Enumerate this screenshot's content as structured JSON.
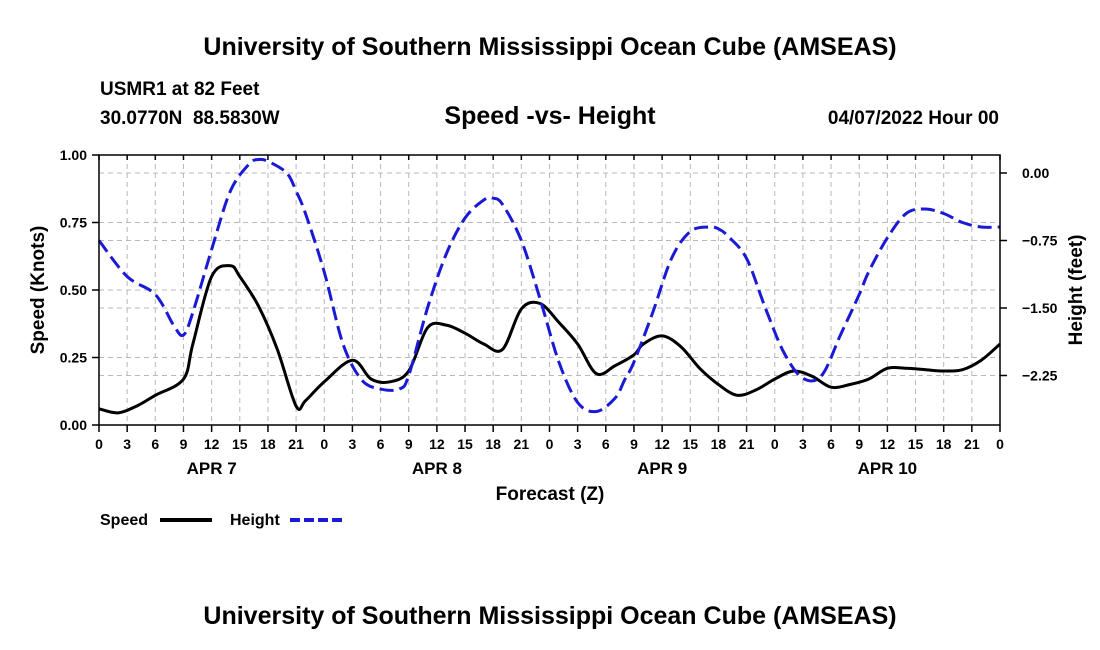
{
  "chart_data": {
    "type": "line",
    "title": "University of Southern Mississippi Ocean Cube (AMSEAS)",
    "footer_title": "University of Southern Mississippi Ocean Cube (AMSEAS)",
    "subtitle": "Speed -vs- Height",
    "station": "USMR1 at 82 Feet",
    "location": "30.0770N  88.5830W",
    "datetime": "04/07/2022 Hour 00",
    "xlabel": "Forecast (Z)",
    "ylabel_left": "Speed (Knots)",
    "ylabel_right": "Height (feet)",
    "x_range": [
      0,
      96
    ],
    "ylim_left": [
      0,
      1
    ],
    "ylim_right": [
      -2.8,
      0.2
    ],
    "left_ticks": [
      "0.00",
      "0.25",
      "0.50",
      "0.75",
      "1.00"
    ],
    "left_tick_values": [
      0,
      0.25,
      0.5,
      0.75,
      1.0
    ],
    "right_ticks": [
      "0.00",
      "−0.75",
      "−1.50",
      "−2.25"
    ],
    "right_tick_values": [
      0,
      -0.75,
      -1.5,
      -2.25
    ],
    "x_tick_labels": [
      "0",
      "3",
      "6",
      "9",
      "12",
      "15",
      "18",
      "21",
      "0",
      "3",
      "6",
      "9",
      "12",
      "15",
      "18",
      "21",
      "0",
      "3",
      "6",
      "9",
      "12",
      "15",
      "18",
      "21",
      "0",
      "3",
      "6",
      "9",
      "12",
      "15",
      "18",
      "21",
      "0"
    ],
    "date_labels": [
      {
        "label": "APR 7",
        "hour": 12
      },
      {
        "label": "APR 8",
        "hour": 36
      },
      {
        "label": "APR 9",
        "hour": 60
      },
      {
        "label": "APR 10",
        "hour": 84
      }
    ],
    "grid": true,
    "series": [
      {
        "name": "Speed",
        "axis": "left",
        "color": "#000000",
        "style": "solid",
        "x": [
          0,
          2,
          4,
          6,
          9,
          10,
          12,
          14,
          15,
          17,
          19,
          21,
          22,
          24,
          27,
          29,
          31,
          33,
          35,
          37,
          39,
          41,
          43,
          45,
          47,
          49,
          51,
          53,
          55,
          57,
          58,
          60,
          62,
          64,
          66,
          68,
          70,
          72,
          74,
          76,
          78,
          80,
          82,
          84,
          86,
          88,
          90,
          92,
          94,
          96
        ],
        "y": [
          0.06,
          0.045,
          0.07,
          0.11,
          0.17,
          0.3,
          0.55,
          0.59,
          0.55,
          0.44,
          0.28,
          0.07,
          0.09,
          0.16,
          0.24,
          0.17,
          0.16,
          0.2,
          0.36,
          0.37,
          0.34,
          0.3,
          0.28,
          0.43,
          0.45,
          0.38,
          0.3,
          0.19,
          0.22,
          0.26,
          0.3,
          0.33,
          0.29,
          0.21,
          0.15,
          0.11,
          0.13,
          0.17,
          0.2,
          0.18,
          0.14,
          0.15,
          0.17,
          0.21,
          0.21,
          0.205,
          0.2,
          0.205,
          0.24,
          0.3
        ]
      },
      {
        "name": "Height",
        "axis": "right",
        "color": "#1a1ad6",
        "style": "dashed",
        "x": [
          0,
          3,
          6,
          8,
          9,
          10,
          12,
          14,
          16,
          17,
          18,
          20,
          21,
          22,
          24,
          26,
          28,
          30,
          32,
          33,
          35,
          37,
          39,
          41,
          42,
          43,
          45,
          47,
          49,
          51,
          53,
          55,
          56,
          57,
          59,
          61,
          63,
          65,
          66,
          67,
          69,
          71,
          73,
          75,
          77,
          79,
          81,
          82,
          84,
          86,
          88,
          90,
          92,
          94,
          96
        ],
        "y": [
          -0.75,
          -1.15,
          -1.35,
          -1.7,
          -1.8,
          -1.55,
          -0.85,
          -0.2,
          0.1,
          0.15,
          0.13,
          0.0,
          -0.2,
          -0.45,
          -1.1,
          -1.9,
          -2.3,
          -2.4,
          -2.4,
          -2.25,
          -1.5,
          -0.9,
          -0.5,
          -0.3,
          -0.28,
          -0.35,
          -0.75,
          -1.4,
          -2.1,
          -2.55,
          -2.65,
          -2.5,
          -2.3,
          -2.1,
          -1.55,
          -0.95,
          -0.65,
          -0.6,
          -0.62,
          -0.7,
          -0.95,
          -1.5,
          -2.0,
          -2.28,
          -2.25,
          -1.8,
          -1.35,
          -1.1,
          -0.72,
          -0.45,
          -0.4,
          -0.45,
          -0.55,
          -0.6,
          -0.6
        ]
      }
    ],
    "legend": [
      {
        "label": "Speed",
        "color": "#000000",
        "style": "solid"
      },
      {
        "label": "Height",
        "color": "#1a1ad6",
        "style": "dashed"
      }
    ]
  }
}
